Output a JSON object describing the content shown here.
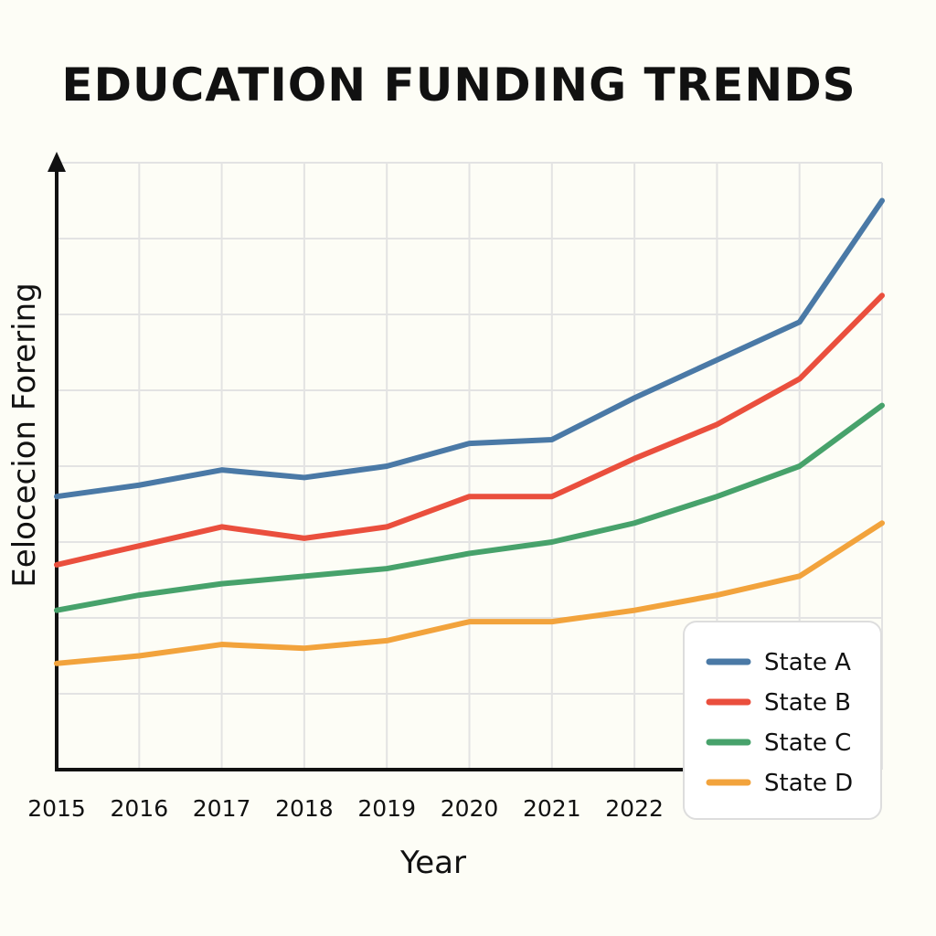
{
  "chart_data": {
    "type": "line",
    "title": "EDUCATION FUNDING TRENDS",
    "xlabel": "Year",
    "ylabel": "Eelocecion Forering",
    "x": [
      0,
      1,
      2,
      3,
      4,
      5,
      6,
      7,
      8,
      9,
      10
    ],
    "x_tick_labels": [
      "2015",
      "2016",
      "2017",
      "2018",
      "2019",
      "2020",
      "2021",
      "2022",
      "2924"
    ],
    "ylim": [
      0,
      8
    ],
    "grid": true,
    "legend_position": "bottom-right",
    "series": [
      {
        "name": "State A",
        "color": "#4a79a6",
        "values": [
          3.6,
          3.75,
          3.95,
          3.85,
          4.0,
          4.3,
          4.35,
          4.9,
          5.4,
          5.9,
          7.5
        ]
      },
      {
        "name": "State B",
        "color": "#ea4f3d",
        "values": [
          2.7,
          2.95,
          3.2,
          3.05,
          3.2,
          3.6,
          3.6,
          4.1,
          4.55,
          5.15,
          6.25
        ]
      },
      {
        "name": "State C",
        "color": "#47a26b",
        "values": [
          2.1,
          2.3,
          2.45,
          2.55,
          2.65,
          2.85,
          3.0,
          3.25,
          3.6,
          4.0,
          4.8
        ]
      },
      {
        "name": "State D",
        "color": "#f2a33c",
        "values": [
          1.4,
          1.5,
          1.65,
          1.6,
          1.7,
          1.95,
          1.95,
          2.1,
          2.3,
          2.55,
          3.25
        ]
      }
    ]
  }
}
